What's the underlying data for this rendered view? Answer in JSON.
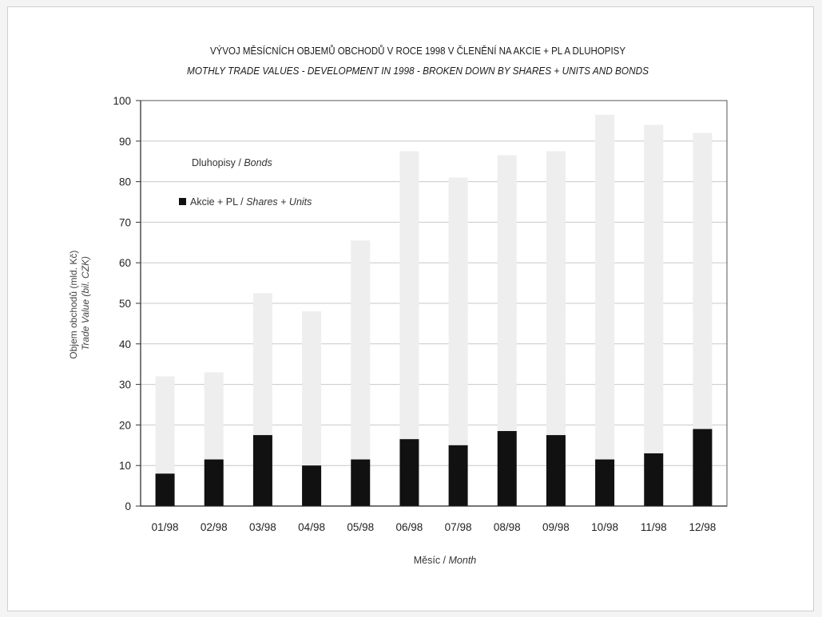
{
  "chart_data": {
    "type": "bar",
    "stacked": true,
    "title": "VÝVOJ MĚSÍCNÍCH OBJEMŮ OBCHODŮ V ROCE 1998 V ČLENĚNÍ NA AKCIE + PL A DLUHOPISY",
    "subtitle": "MOTHLY TRADE VALUES - DEVELOPMENT IN 1998 - BROKEN DOWN BY SHARES + UNITS AND BONDS",
    "ylabel": "Objem obchodů (mld. Kč)",
    "ylabel_en": "Trade Value (bil. CZK)",
    "xlabel": "Měsíc",
    "xlabel_en": "Month",
    "xlabel_sep": " / ",
    "ylim": [
      0,
      100
    ],
    "yticks": [
      0,
      10,
      20,
      30,
      40,
      50,
      60,
      70,
      80,
      90,
      100
    ],
    "grid": true,
    "categories": [
      "01/98",
      "02/98",
      "03/98",
      "04/98",
      "05/98",
      "06/98",
      "07/98",
      "08/98",
      "09/98",
      "10/98",
      "11/98",
      "12/98"
    ],
    "series": [
      {
        "name": "Akcie + PL",
        "name_en": "Shares + Units",
        "color": "#111111",
        "values": [
          8,
          11.5,
          17.5,
          10,
          11.5,
          16.5,
          15,
          18.5,
          17.5,
          11.5,
          13,
          19
        ]
      },
      {
        "name": "Dluhopisy",
        "name_en": "Bonds",
        "color": "#eeeeee",
        "values": [
          24,
          21.5,
          35,
          38,
          54,
          71,
          66,
          68,
          70,
          85,
          81,
          73
        ]
      }
    ],
    "legend_placement": "top-left"
  },
  "legend": {
    "bonds_label": "Dluhopisy",
    "bonds_label_en": "Bonds",
    "shares_label": "Akcie + PL",
    "shares_label_en": "Shares + Units",
    "sep": " / "
  }
}
